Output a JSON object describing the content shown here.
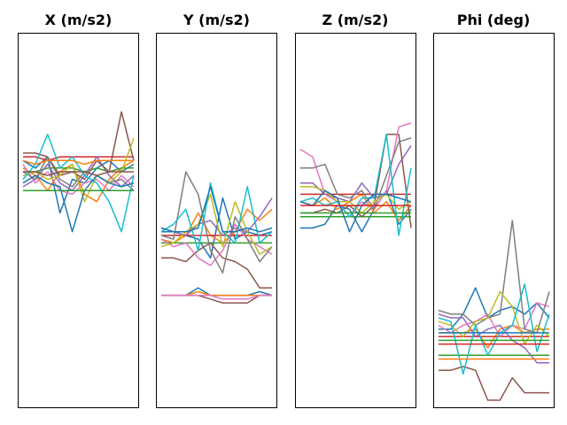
{
  "chart_data": {
    "type": "line",
    "panels": [
      {
        "title": "X (m/s2)",
        "ylim": [
          0,
          1
        ],
        "series": [
          {
            "color": "#1f77b4",
            "values": [
              0.66,
              0.64,
              0.67,
              0.52,
              0.61,
              0.6,
              0.64,
              0.66,
              0.63,
              0.65
            ]
          },
          {
            "color": "#ff7f0e",
            "values": [
              0.64,
              0.62,
              0.58,
              0.63,
              0.65,
              0.57,
              0.55,
              0.61,
              0.64,
              0.66
            ]
          },
          {
            "color": "#2ca02c",
            "values": [
              0.63,
              0.63,
              0.64,
              0.64,
              0.64,
              0.63,
              0.64,
              0.63,
              0.64,
              0.64
            ]
          },
          {
            "color": "#d62728",
            "values": [
              0.67,
              0.67,
              0.66,
              0.67,
              0.67,
              0.67,
              0.67,
              0.67,
              0.67,
              0.67
            ]
          },
          {
            "color": "#9467bd",
            "values": [
              0.59,
              0.61,
              0.65,
              0.6,
              0.58,
              0.62,
              0.67,
              0.62,
              0.59,
              0.62
            ]
          },
          {
            "color": "#8c564b",
            "values": [
              0.68,
              0.68,
              0.67,
              0.62,
              0.63,
              0.61,
              0.66,
              0.63,
              0.79,
              0.66
            ]
          },
          {
            "color": "#e377c2",
            "values": [
              0.65,
              0.6,
              0.63,
              0.58,
              0.57,
              0.6,
              0.61,
              0.58,
              0.62,
              0.59
            ]
          },
          {
            "color": "#7f7f7f",
            "values": [
              0.63,
              0.61,
              0.67,
              0.61,
              0.59,
              0.63,
              0.62,
              0.6,
              0.61,
              0.58
            ]
          },
          {
            "color": "#bcbd22",
            "values": [
              0.62,
              0.63,
              0.61,
              0.62,
              0.65,
              0.55,
              0.62,
              0.6,
              0.63,
              0.72
            ]
          },
          {
            "color": "#17becf",
            "values": [
              0.61,
              0.65,
              0.73,
              0.64,
              0.67,
              0.62,
              0.6,
              0.55,
              0.47,
              0.62
            ]
          },
          {
            "color": "#1f77b4",
            "values": [
              0.6,
              0.62,
              0.6,
              0.59,
              0.47,
              0.58,
              0.62,
              0.6,
              0.59,
              0.6
            ]
          },
          {
            "color": "#ff7f0e",
            "values": [
              0.66,
              0.65,
              0.66,
              0.66,
              0.66,
              0.65,
              0.66,
              0.66,
              0.66,
              0.66
            ]
          },
          {
            "color": "#2ca02c",
            "values": [
              0.58,
              0.58,
              0.58,
              0.58,
              0.58,
              0.58,
              0.58,
              0.58,
              0.58,
              0.58
            ]
          },
          {
            "color": "#8c564b",
            "values": [
              0.63,
              0.63,
              0.62,
              0.63,
              0.63,
              0.63,
              0.62,
              0.63,
              0.63,
              0.63
            ]
          }
        ]
      },
      {
        "title": "Y (m/s2)",
        "ylim": [
          0,
          1
        ],
        "series": [
          {
            "color": "#1f77b4",
            "values": [
              0.47,
              0.47,
              0.46,
              0.45,
              0.4,
              0.56,
              0.45,
              0.47,
              0.46,
              0.47
            ]
          },
          {
            "color": "#ff7f0e",
            "values": [
              0.45,
              0.44,
              0.46,
              0.52,
              0.46,
              0.44,
              0.47,
              0.53,
              0.5,
              0.53
            ]
          },
          {
            "color": "#2ca02c",
            "values": [
              0.44,
              0.44,
              0.44,
              0.44,
              0.44,
              0.44,
              0.44,
              0.44,
              0.44,
              0.44
            ]
          },
          {
            "color": "#d62728",
            "values": [
              0.46,
              0.46,
              0.46,
              0.46,
              0.46,
              0.46,
              0.46,
              0.46,
              0.46,
              0.46
            ]
          },
          {
            "color": "#9467bd",
            "values": [
              0.48,
              0.47,
              0.46,
              0.49,
              0.5,
              0.46,
              0.48,
              0.47,
              0.51,
              0.56
            ]
          },
          {
            "color": "#8c564b",
            "values": [
              0.4,
              0.4,
              0.39,
              0.42,
              0.44,
              0.4,
              0.39,
              0.37,
              0.32,
              0.32
            ]
          },
          {
            "color": "#e377c2",
            "values": [
              0.45,
              0.43,
              0.44,
              0.4,
              0.38,
              0.42,
              0.49,
              0.45,
              0.43,
              0.41
            ]
          },
          {
            "color": "#7f7f7f",
            "values": [
              0.46,
              0.45,
              0.63,
              0.57,
              0.42,
              0.36,
              0.51,
              0.45,
              0.39,
              0.43
            ]
          },
          {
            "color": "#bcbd22",
            "values": [
              0.43,
              0.44,
              0.47,
              0.49,
              0.57,
              0.43,
              0.55,
              0.47,
              0.41,
              0.43
            ]
          },
          {
            "color": "#17becf",
            "values": [
              0.47,
              0.49,
              0.53,
              0.42,
              0.6,
              0.47,
              0.44,
              0.59,
              0.44,
              0.47
            ]
          },
          {
            "color": "#1f77b4",
            "values": [
              0.48,
              0.47,
              0.47,
              0.48,
              0.59,
              0.47,
              0.47,
              0.48,
              0.47,
              0.48
            ]
          },
          {
            "color": "#1f77b4",
            "values": [
              0.3,
              0.3,
              0.3,
              0.32,
              0.3,
              0.3,
              0.3,
              0.3,
              0.31,
              0.3
            ]
          },
          {
            "color": "#ff7f0e",
            "values": [
              0.3,
              0.3,
              0.3,
              0.31,
              0.3,
              0.3,
              0.3,
              0.3,
              0.3,
              0.3
            ]
          },
          {
            "color": "#8c564b",
            "values": [
              0.3,
              0.3,
              0.3,
              0.3,
              0.29,
              0.28,
              0.28,
              0.28,
              0.3,
              0.3
            ]
          },
          {
            "color": "#e377c2",
            "values": [
              0.3,
              0.3,
              0.3,
              0.3,
              0.3,
              0.29,
              0.29,
              0.29,
              0.3,
              0.3
            ]
          }
        ]
      },
      {
        "title": "Z (m/s2)",
        "ylim": [
          0,
          1
        ],
        "series": [
          {
            "color": "#1f77b4",
            "values": [
              0.48,
              0.48,
              0.49,
              0.54,
              0.53,
              0.47,
              0.53,
              0.58,
              0.49,
              0.53
            ]
          },
          {
            "color": "#ff7f0e",
            "values": [
              0.55,
              0.54,
              0.56,
              0.53,
              0.55,
              0.57,
              0.52,
              0.55,
              0.5,
              0.54
            ]
          },
          {
            "color": "#2ca02c",
            "values": [
              0.51,
              0.51,
              0.51,
              0.51,
              0.51,
              0.51,
              0.51,
              0.51,
              0.51,
              0.51
            ]
          },
          {
            "color": "#d62728",
            "values": [
              0.57,
              0.57,
              0.57,
              0.57,
              0.57,
              0.57,
              0.57,
              0.57,
              0.57,
              0.57
            ]
          },
          {
            "color": "#9467bd",
            "values": [
              0.6,
              0.6,
              0.57,
              0.56,
              0.55,
              0.6,
              0.56,
              0.57,
              0.65,
              0.7
            ]
          },
          {
            "color": "#8c564b",
            "values": [
              0.52,
              0.52,
              0.53,
              0.52,
              0.54,
              0.51,
              0.54,
              0.73,
              0.73,
              0.48
            ]
          },
          {
            "color": "#e377c2",
            "values": [
              0.69,
              0.67,
              0.57,
              0.55,
              0.51,
              0.55,
              0.53,
              0.58,
              0.75,
              0.76
            ]
          },
          {
            "color": "#7f7f7f",
            "values": [
              0.64,
              0.64,
              0.65,
              0.57,
              0.56,
              0.58,
              0.53,
              0.62,
              0.71,
              0.72
            ]
          },
          {
            "color": "#bcbd22",
            "values": [
              0.59,
              0.59,
              0.58,
              0.55,
              0.55,
              0.52,
              0.55,
              0.57,
              0.53,
              0.55
            ]
          },
          {
            "color": "#17becf",
            "values": [
              0.55,
              0.56,
              0.54,
              0.55,
              0.51,
              0.56,
              0.56,
              0.73,
              0.46,
              0.64
            ]
          },
          {
            "color": "#1f77b4",
            "values": [
              0.55,
              0.54,
              0.58,
              0.56,
              0.47,
              0.54,
              0.57,
              0.57,
              0.56,
              0.55
            ]
          },
          {
            "color": "#d62728",
            "values": [
              0.54,
              0.54,
              0.54,
              0.54,
              0.54,
              0.54,
              0.54,
              0.54,
              0.54,
              0.54
            ]
          },
          {
            "color": "#2ca02c",
            "values": [
              0.52,
              0.52,
              0.52,
              0.52,
              0.52,
              0.52,
              0.52,
              0.52,
              0.52,
              0.52
            ]
          }
        ]
      },
      {
        "title": "Phi (deg)",
        "ylim": [
          0,
          1
        ],
        "series": [
          {
            "color": "#1f77b4",
            "values": [
              0.21,
              0.21,
              0.25,
              0.32,
              0.24,
              0.26,
              0.27,
              0.25,
              0.28,
              0.24
            ]
          },
          {
            "color": "#ff7f0e",
            "values": [
              0.2,
              0.2,
              0.2,
              0.21,
              0.16,
              0.21,
              0.22,
              0.2,
              0.21,
              0.21
            ]
          },
          {
            "color": "#2ca02c",
            "values": [
              0.14,
              0.14,
              0.14,
              0.14,
              0.14,
              0.14,
              0.14,
              0.14,
              0.14,
              0.14
            ]
          },
          {
            "color": "#d62728",
            "values": [
              0.19,
              0.19,
              0.19,
              0.19,
              0.19,
              0.19,
              0.19,
              0.19,
              0.19,
              0.19
            ]
          },
          {
            "color": "#9467bd",
            "values": [
              0.25,
              0.24,
              0.24,
              0.19,
              0.21,
              0.22,
              0.18,
              0.16,
              0.12,
              0.12
            ]
          },
          {
            "color": "#8c564b",
            "values": [
              0.1,
              0.1,
              0.11,
              0.1,
              0.02,
              0.02,
              0.08,
              0.04,
              0.04,
              0.04
            ]
          },
          {
            "color": "#e377c2",
            "values": [
              0.22,
              0.2,
              0.22,
              0.23,
              0.25,
              0.19,
              0.22,
              0.21,
              0.28,
              0.27
            ]
          },
          {
            "color": "#7f7f7f",
            "values": [
              0.26,
              0.25,
              0.25,
              0.22,
              0.24,
              0.25,
              0.5,
              0.21,
              0.2,
              0.31
            ]
          },
          {
            "color": "#bcbd22",
            "values": [
              0.23,
              0.22,
              0.19,
              0.23,
              0.24,
              0.31,
              0.27,
              0.17,
              0.22,
              0.19
            ]
          },
          {
            "color": "#17becf",
            "values": [
              0.24,
              0.23,
              0.09,
              0.22,
              0.14,
              0.2,
              0.22,
              0.33,
              0.15,
              0.25
            ]
          },
          {
            "color": "#1f77b4",
            "values": [
              0.2,
              0.2,
              0.2,
              0.2,
              0.2,
              0.2,
              0.2,
              0.2,
              0.2,
              0.2
            ]
          },
          {
            "color": "#ff7f0e",
            "values": [
              0.13,
              0.13,
              0.13,
              0.13,
              0.13,
              0.13,
              0.13,
              0.13,
              0.13,
              0.13
            ]
          },
          {
            "color": "#2ca02c",
            "values": [
              0.18,
              0.18,
              0.18,
              0.18,
              0.18,
              0.18,
              0.18,
              0.18,
              0.18,
              0.18
            ]
          },
          {
            "color": "#d62728",
            "values": [
              0.17,
              0.17,
              0.17,
              0.17,
              0.17,
              0.17,
              0.17,
              0.17,
              0.17,
              0.17
            ]
          }
        ]
      }
    ]
  }
}
